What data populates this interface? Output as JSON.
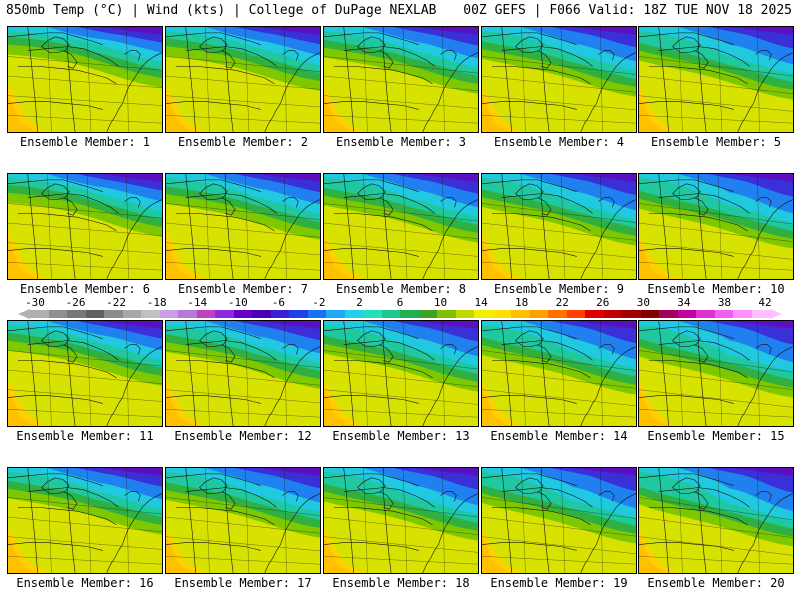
{
  "header": {
    "left": "850mb Temp (°C) | Wind (kts) | College of DuPage NEXLAB",
    "right": "00Z GEFS | F066 Valid: 18Z TUE NOV 18 2025"
  },
  "panels": [
    {
      "label": "Ensemble Member: 1"
    },
    {
      "label": "Ensemble Member: 2"
    },
    {
      "label": "Ensemble Member: 3"
    },
    {
      "label": "Ensemble Member: 4"
    },
    {
      "label": "Ensemble Member: 5"
    },
    {
      "label": "Ensemble Member: 6"
    },
    {
      "label": "Ensemble Member: 7"
    },
    {
      "label": "Ensemble Member: 8"
    },
    {
      "label": "Ensemble Member: 9"
    },
    {
      "label": "Ensemble Member: 10"
    },
    {
      "label": "Ensemble Member: 11"
    },
    {
      "label": "Ensemble Member: 12"
    },
    {
      "label": "Ensemble Member: 13"
    },
    {
      "label": "Ensemble Member: 14"
    },
    {
      "label": "Ensemble Member: 15"
    },
    {
      "label": "Ensemble Member: 16"
    },
    {
      "label": "Ensemble Member: 17"
    },
    {
      "label": "Ensemble Member: 18"
    },
    {
      "label": "Ensemble Member: 19"
    },
    {
      "label": "Ensemble Member: 20"
    }
  ],
  "colorbar": {
    "ticks": [
      "-30",
      "-26",
      "-22",
      "-18",
      "-14",
      "-10",
      "-6",
      "-2",
      "2",
      "6",
      "10",
      "14",
      "18",
      "22",
      "26",
      "30",
      "34",
      "38",
      "42"
    ],
    "colors": [
      "#b0b0b0",
      "#909090",
      "#787878",
      "#606060",
      "#8c8c8c",
      "#a8a8a8",
      "#c0c0c0",
      "#c8a0e0",
      "#b878d8",
      "#c040c0",
      "#8a2be2",
      "#6a00c8",
      "#4b00b0",
      "#3a20d0",
      "#2040e8",
      "#1a70f0",
      "#20a8f0",
      "#20d0e8",
      "#20e0c0",
      "#20c890",
      "#20b050",
      "#40a020",
      "#80c000",
      "#c0d800",
      "#f0f000",
      "#ffe000",
      "#ffc000",
      "#ffa000",
      "#ff7000",
      "#ff4000",
      "#e00000",
      "#c00000",
      "#a00000",
      "#800000",
      "#a00060",
      "#c000a0",
      "#e030d0",
      "#f060f0",
      "#ff90ff",
      "#ffc0ff"
    ]
  }
}
